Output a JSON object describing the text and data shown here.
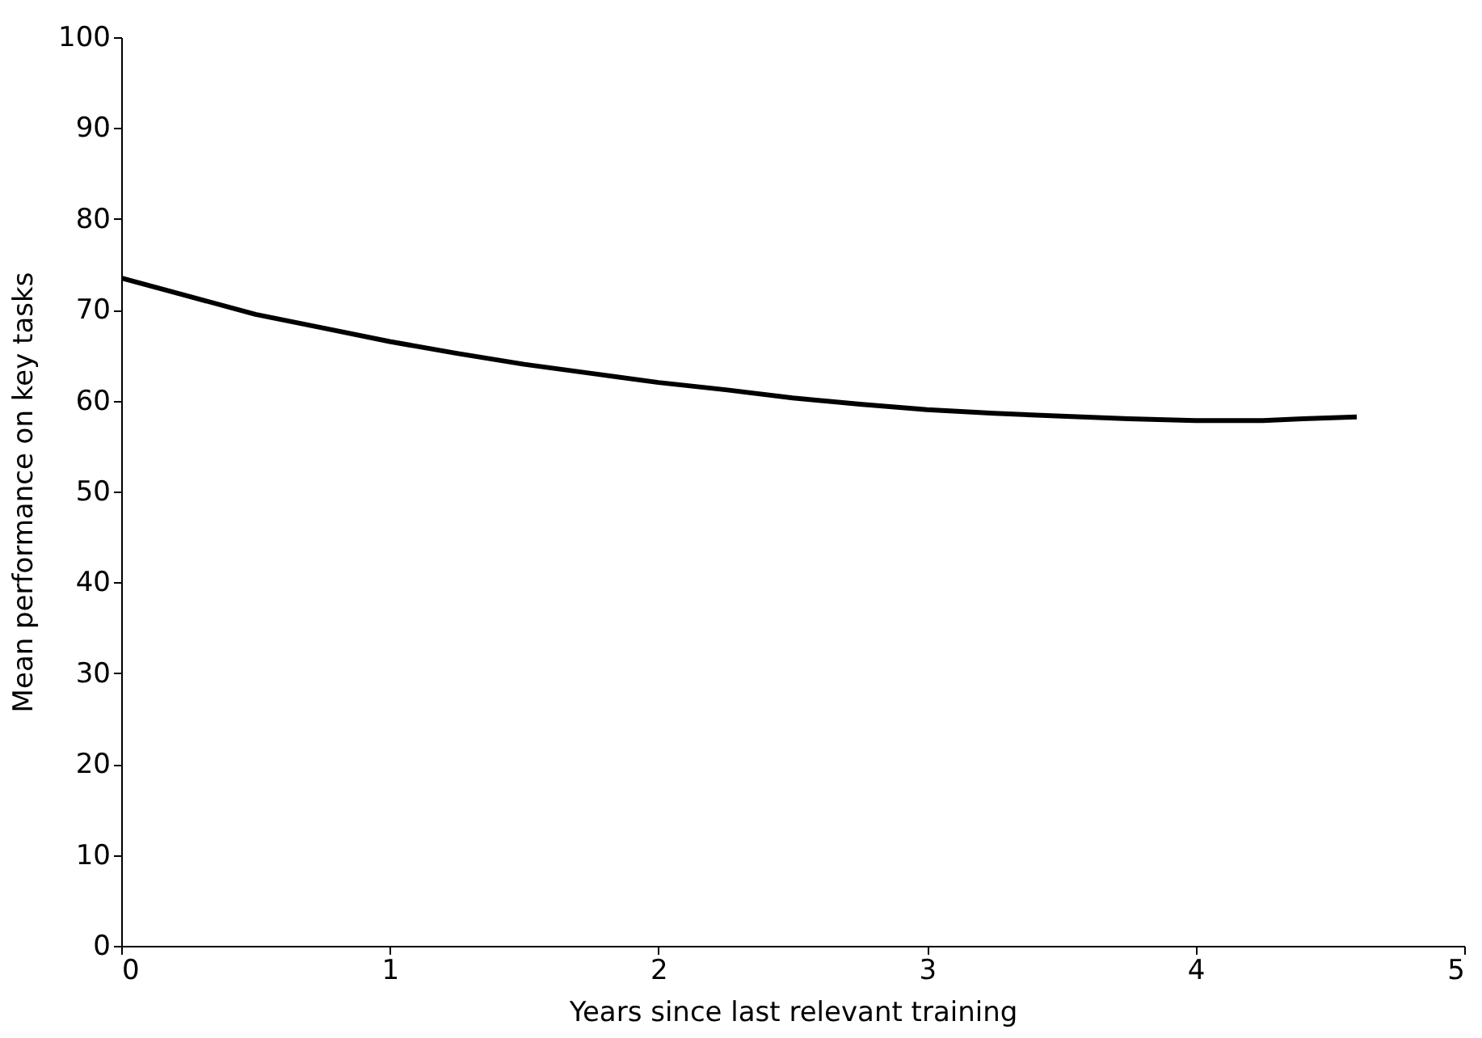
{
  "chart_data": {
    "type": "line",
    "xlabel": "Years since  last relevant training",
    "ylabel": "Mean performance on key tasks",
    "x": [
      0,
      0.25,
      0.5,
      0.75,
      1,
      1.25,
      1.5,
      1.75,
      2,
      2.25,
      2.5,
      2.75,
      3,
      3.25,
      3.5,
      3.75,
      4,
      4.25,
      4.4,
      4.6
    ],
    "series": [
      {
        "color": "#000000",
        "values": [
          73.5,
          71.5,
          69.5,
          68,
          66.5,
          65.2,
          64,
          63,
          62,
          61.2,
          60.3,
          59.6,
          59,
          58.6,
          58.3,
          58,
          57.8,
          57.8,
          58,
          58.2
        ]
      }
    ],
    "xlim": [
      0,
      5
    ],
    "xticks": [
      0,
      1,
      2,
      3,
      4,
      5
    ],
    "ylim": [
      0,
      100
    ],
    "yticks": [
      0,
      10,
      20,
      30,
      40,
      50,
      60,
      70,
      80,
      90,
      100
    ],
    "grid": false,
    "marker": "none",
    "line_style": "solid"
  }
}
